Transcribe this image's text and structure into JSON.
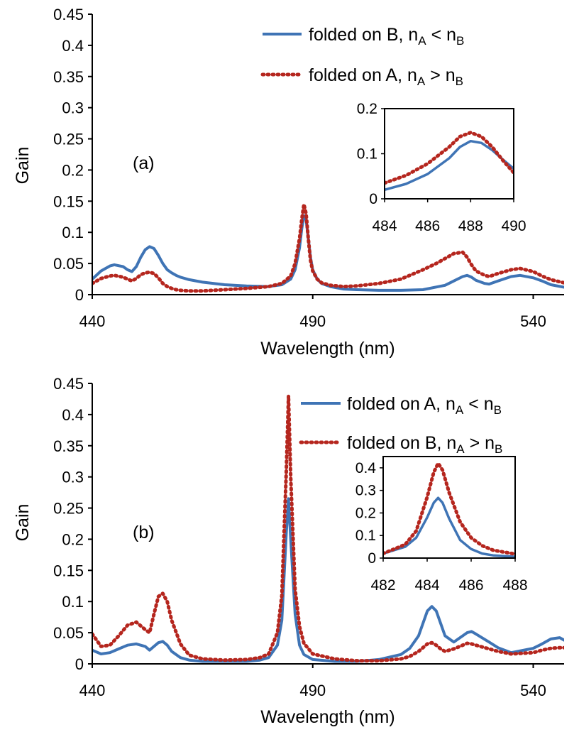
{
  "figure": {
    "colors": {
      "blue": "#3f74b5",
      "red": "#b5261e"
    },
    "panels": [
      {
        "id": "a",
        "tag": "(a)",
        "xlabel": "Wavelength (nm)",
        "ylabel": "Gain",
        "legend": [
          {
            "text_pre": "folded on B, n",
            "sub1": "A",
            "rel": " < n",
            "sub2": "B",
            "color": "blue",
            "style": "solid"
          },
          {
            "text_pre": "folded on A, n",
            "sub1": "A",
            "rel": " > n",
            "sub2": "B",
            "color": "red",
            "style": "dotted"
          }
        ]
      },
      {
        "id": "b",
        "tag": "(b)",
        "xlabel": "Wavelength (nm)",
        "ylabel": "Gain",
        "legend": [
          {
            "text_pre": "folded on A, n",
            "sub1": "A",
            "rel": " < n",
            "sub2": "B",
            "color": "blue",
            "style": "solid"
          },
          {
            "text_pre": "folded on B, n",
            "sub1": "A",
            "rel": " > n",
            "sub2": "B",
            "color": "red",
            "style": "dotted"
          }
        ]
      }
    ]
  },
  "chart_data": [
    {
      "type": "line",
      "panel": "(a)",
      "xlabel": "Wavelength (nm)",
      "ylabel": "Gain",
      "xlim": [
        440,
        547
      ],
      "ylim": [
        0,
        0.45
      ],
      "xticks": [
        440,
        490,
        540
      ],
      "xtick_labels": [
        "440",
        "490",
        "540"
      ],
      "yticks": [
        0,
        0.05,
        0.1,
        0.15,
        0.2,
        0.25,
        0.3,
        0.35,
        0.4,
        0.45
      ],
      "ytick_labels": [
        "0",
        "0.05",
        "0.1",
        "0.15",
        "0.2",
        "0.25",
        "0.3",
        "0.35",
        "0.4",
        "0.45"
      ],
      "legend_position": "top-right",
      "grid": false,
      "series": [
        {
          "name": "folded on B, nA < nB",
          "color": "blue",
          "style": "solid",
          "x": [
            440,
            442,
            444,
            445,
            447,
            448,
            449,
            450,
            451,
            452,
            453,
            454,
            455,
            456,
            457,
            458,
            459,
            460,
            462,
            465,
            470,
            475,
            480,
            483,
            485,
            486,
            487,
            487.5,
            488,
            488.5,
            489,
            489.5,
            490,
            491,
            492,
            494,
            497,
            500,
            505,
            510,
            515,
            520,
            522,
            524,
            525,
            526,
            527,
            529,
            530,
            532,
            535,
            537,
            540,
            542,
            544,
            547
          ],
          "y": [
            0.025,
            0.038,
            0.046,
            0.048,
            0.045,
            0.04,
            0.037,
            0.045,
            0.06,
            0.072,
            0.077,
            0.074,
            0.063,
            0.05,
            0.04,
            0.035,
            0.031,
            0.028,
            0.024,
            0.02,
            0.016,
            0.014,
            0.013,
            0.016,
            0.025,
            0.04,
            0.075,
            0.105,
            0.127,
            0.12,
            0.09,
            0.06,
            0.04,
            0.025,
            0.018,
            0.013,
            0.009,
            0.008,
            0.007,
            0.007,
            0.008,
            0.015,
            0.022,
            0.029,
            0.031,
            0.028,
            0.023,
            0.018,
            0.017,
            0.022,
            0.029,
            0.031,
            0.027,
            0.022,
            0.016,
            0.012
          ]
        },
        {
          "name": "folded on A, nA > nB",
          "color": "red",
          "style": "dotted",
          "x": [
            440,
            442,
            444,
            445,
            447,
            448,
            449,
            450,
            451,
            452,
            453,
            454,
            455,
            456,
            457,
            458,
            459,
            460,
            462,
            465,
            470,
            475,
            480,
            483,
            485,
            486,
            487,
            487.5,
            488,
            488.5,
            489,
            489.5,
            490,
            491,
            492,
            494,
            497,
            500,
            505,
            510,
            515,
            518,
            520,
            522,
            524,
            525,
            526,
            527,
            529,
            530,
            532,
            535,
            537,
            540,
            542,
            544,
            547
          ],
          "y": [
            0.018,
            0.026,
            0.03,
            0.031,
            0.028,
            0.025,
            0.022,
            0.026,
            0.032,
            0.035,
            0.036,
            0.034,
            0.027,
            0.018,
            0.013,
            0.01,
            0.008,
            0.007,
            0.006,
            0.006,
            0.008,
            0.01,
            0.013,
            0.018,
            0.03,
            0.05,
            0.09,
            0.12,
            0.145,
            0.13,
            0.09,
            0.055,
            0.038,
            0.025,
            0.019,
            0.015,
            0.013,
            0.014,
            0.018,
            0.025,
            0.04,
            0.05,
            0.058,
            0.066,
            0.068,
            0.06,
            0.048,
            0.038,
            0.031,
            0.029,
            0.034,
            0.04,
            0.042,
            0.037,
            0.03,
            0.024,
            0.019
          ]
        }
      ],
      "inset": {
        "xlim": [
          484,
          490
        ],
        "ylim": [
          0,
          0.2
        ],
        "xticks": [
          484,
          486,
          488,
          490
        ],
        "xtick_labels": [
          "484",
          "486",
          "488",
          "490"
        ],
        "yticks": [
          0,
          0.1,
          0.2
        ],
        "ytick_labels": [
          "0",
          "0.1",
          "0.2"
        ],
        "series": [
          {
            "color": "blue",
            "style": "solid",
            "x": [
              484,
              485,
              486,
              487,
              487.5,
              488,
              488.5,
              489,
              489.5,
              490
            ],
            "y": [
              0.02,
              0.033,
              0.055,
              0.09,
              0.115,
              0.128,
              0.124,
              0.108,
              0.087,
              0.067
            ]
          },
          {
            "color": "red",
            "style": "dotted",
            "x": [
              484,
              485,
              486,
              487,
              487.5,
              488,
              488.5,
              489,
              489.5,
              490
            ],
            "y": [
              0.035,
              0.052,
              0.078,
              0.115,
              0.138,
              0.147,
              0.138,
              0.115,
              0.085,
              0.058
            ]
          }
        ]
      }
    },
    {
      "type": "line",
      "panel": "(b)",
      "xlabel": "Wavelength (nm)",
      "ylabel": "Gain",
      "xlim": [
        440,
        547
      ],
      "ylim": [
        0,
        0.45
      ],
      "xticks": [
        440,
        490,
        540
      ],
      "xtick_labels": [
        "440",
        "490",
        "540"
      ],
      "yticks": [
        0,
        0.05,
        0.1,
        0.15,
        0.2,
        0.25,
        0.3,
        0.35,
        0.4,
        0.45
      ],
      "ytick_labels": [
        "0",
        "0.05",
        "0.1",
        "0.15",
        "0.2",
        "0.25",
        "0.3",
        "0.35",
        "0.4",
        "0.45"
      ],
      "legend_position": "top-right",
      "grid": false,
      "series": [
        {
          "name": "folded on A, nA < nB",
          "color": "blue",
          "style": "solid",
          "x": [
            440,
            442,
            444,
            446,
            448,
            450,
            452,
            453,
            454,
            455,
            456,
            457,
            458,
            460,
            462,
            465,
            470,
            475,
            478,
            480,
            482,
            483,
            484,
            484.5,
            485,
            486,
            487,
            488,
            490,
            495,
            500,
            505,
            510,
            512,
            514,
            515,
            516,
            517,
            518,
            519,
            520,
            522,
            524,
            525,
            526,
            527,
            530,
            532,
            535,
            540,
            542,
            544,
            546,
            547
          ],
          "y": [
            0.022,
            0.016,
            0.018,
            0.024,
            0.03,
            0.032,
            0.028,
            0.022,
            0.028,
            0.034,
            0.036,
            0.03,
            0.02,
            0.01,
            0.006,
            0.004,
            0.004,
            0.004,
            0.006,
            0.01,
            0.03,
            0.07,
            0.21,
            0.265,
            0.2,
            0.08,
            0.03,
            0.015,
            0.007,
            0.004,
            0.004,
            0.007,
            0.015,
            0.025,
            0.045,
            0.065,
            0.085,
            0.092,
            0.085,
            0.065,
            0.045,
            0.035,
            0.045,
            0.05,
            0.052,
            0.048,
            0.035,
            0.026,
            0.018,
            0.025,
            0.032,
            0.04,
            0.042,
            0.038
          ]
        },
        {
          "name": "folded on B, nA > nB",
          "color": "red",
          "style": "dotted",
          "x": [
            440,
            442,
            444,
            446,
            448,
            450,
            452,
            453,
            454,
            455,
            456,
            457,
            458,
            460,
            462,
            465,
            470,
            475,
            478,
            480,
            482,
            483,
            484,
            484.5,
            485,
            486,
            487,
            488,
            490,
            495,
            500,
            505,
            510,
            512,
            514,
            515,
            516,
            517,
            518,
            519,
            520,
            522,
            524,
            525,
            526,
            527,
            530,
            532,
            535,
            540,
            542,
            544,
            546,
            547
          ],
          "y": [
            0.048,
            0.028,
            0.03,
            0.045,
            0.062,
            0.067,
            0.055,
            0.05,
            0.08,
            0.108,
            0.113,
            0.1,
            0.07,
            0.032,
            0.014,
            0.008,
            0.006,
            0.007,
            0.01,
            0.016,
            0.05,
            0.11,
            0.31,
            0.43,
            0.3,
            0.12,
            0.06,
            0.033,
            0.016,
            0.008,
            0.005,
            0.005,
            0.008,
            0.012,
            0.02,
            0.026,
            0.032,
            0.034,
            0.03,
            0.024,
            0.02,
            0.024,
            0.03,
            0.033,
            0.032,
            0.03,
            0.024,
            0.02,
            0.016,
            0.018,
            0.022,
            0.025,
            0.026,
            0.026
          ]
        }
      ],
      "inset": {
        "xlim": [
          482,
          488
        ],
        "ylim": [
          0,
          0.45
        ],
        "xticks": [
          482,
          484,
          486,
          488
        ],
        "xtick_labels": [
          "482",
          "484",
          "486",
          "488"
        ],
        "yticks": [
          0,
          0.1,
          0.2,
          0.3,
          0.4
        ],
        "ytick_labels": [
          "0",
          "0.1",
          "0.2",
          "0.3",
          "0.4"
        ],
        "series": [
          {
            "color": "blue",
            "style": "solid",
            "x": [
              482,
              483,
              483.5,
              484,
              484.3,
              484.5,
              484.7,
              485,
              485.5,
              486,
              486.5,
              487,
              488
            ],
            "y": [
              0.02,
              0.05,
              0.09,
              0.18,
              0.245,
              0.267,
              0.245,
              0.175,
              0.08,
              0.04,
              0.02,
              0.012,
              0.006
            ]
          },
          {
            "color": "red",
            "style": "dotted",
            "x": [
              482,
              483,
              483.5,
              484,
              484.3,
              484.5,
              484.7,
              485,
              485.5,
              486,
              486.5,
              487,
              488
            ],
            "y": [
              0.02,
              0.06,
              0.12,
              0.27,
              0.38,
              0.42,
              0.39,
              0.29,
              0.16,
              0.09,
              0.055,
              0.035,
              0.018
            ]
          }
        ]
      }
    }
  ]
}
